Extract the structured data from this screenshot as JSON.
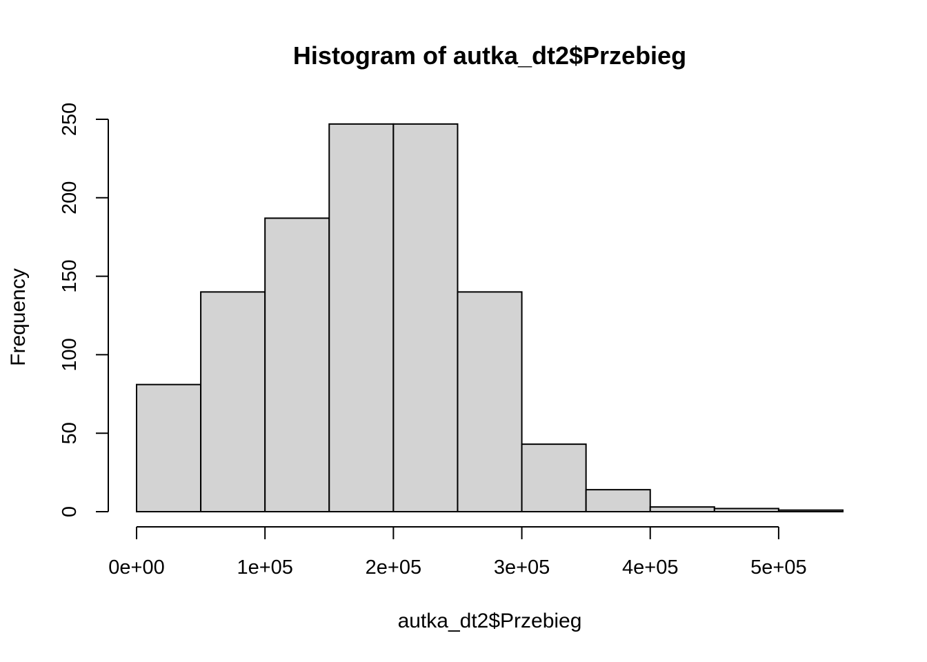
{
  "chart_data": {
    "type": "bar",
    "title": "Histogram of autka_dt2$Przebieg",
    "xlabel": "autka_dt2$Przebieg",
    "ylabel": "Frequency",
    "bar_color": "#d3d3d3",
    "bins": [
      {
        "x0": 0,
        "x1": 50000,
        "value": 81
      },
      {
        "x0": 50000,
        "x1": 100000,
        "value": 140
      },
      {
        "x0": 100000,
        "x1": 150000,
        "value": 187
      },
      {
        "x0": 150000,
        "x1": 200000,
        "value": 247
      },
      {
        "x0": 200000,
        "x1": 250000,
        "value": 247
      },
      {
        "x0": 250000,
        "x1": 300000,
        "value": 140
      },
      {
        "x0": 300000,
        "x1": 350000,
        "value": 43
      },
      {
        "x0": 350000,
        "x1": 400000,
        "value": 14
      },
      {
        "x0": 400000,
        "x1": 450000,
        "value": 3
      },
      {
        "x0": 450000,
        "x1": 500000,
        "value": 2
      },
      {
        "x0": 500000,
        "x1": 550000,
        "value": 1
      }
    ],
    "xlim": [
      0,
      550000
    ],
    "ylim": [
      0,
      250
    ],
    "x_ticks": [
      {
        "value": 0,
        "label": "0e+00"
      },
      {
        "value": 100000,
        "label": "1e+05"
      },
      {
        "value": 200000,
        "label": "2e+05"
      },
      {
        "value": 300000,
        "label": "3e+05"
      },
      {
        "value": 400000,
        "label": "4e+05"
      },
      {
        "value": 500000,
        "label": "5e+05"
      }
    ],
    "y_ticks": [
      {
        "value": 0,
        "label": "0"
      },
      {
        "value": 50,
        "label": "50"
      },
      {
        "value": 100,
        "label": "100"
      },
      {
        "value": 150,
        "label": "150"
      },
      {
        "value": 200,
        "label": "200"
      },
      {
        "value": 250,
        "label": "250"
      }
    ],
    "grid": false,
    "legend": "none"
  }
}
